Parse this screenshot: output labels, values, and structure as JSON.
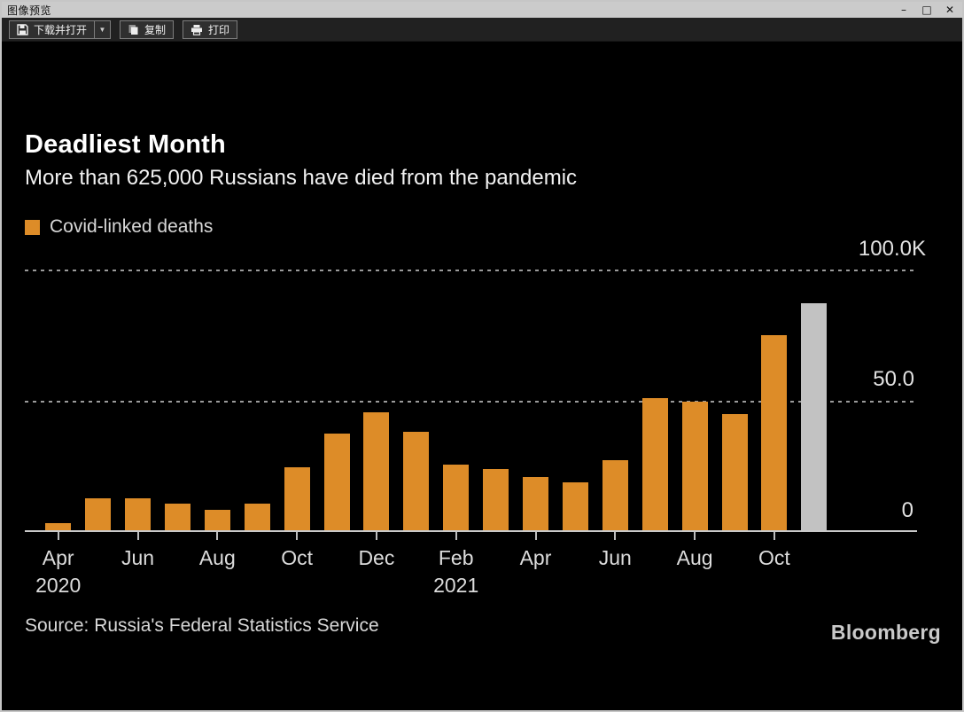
{
  "window": {
    "title": "图像预览",
    "controls": {
      "minimize": "–",
      "maximize": "□",
      "close": "✕"
    }
  },
  "toolbar": {
    "download_open_label": "下载并打开",
    "copy_label": "复制",
    "print_label": "打印"
  },
  "chart": {
    "title": "Deadliest Month",
    "subtitle": "More than 625,000 Russians have died from the pandemic",
    "legend_label": "Covid-linked deaths",
    "source": "Source: Russia's Federal Statistics Service",
    "brand": "Bloomberg",
    "colors": {
      "bar_orange": "#dd8c28",
      "bar_highlight_gray": "#c2c2c2",
      "background": "#000000",
      "text": "#f2f2f2"
    }
  },
  "chart_data": {
    "type": "bar",
    "title": "Deadliest Month",
    "subtitle": "More than 625,000 Russians have died from the pandemic",
    "legend": [
      "Covid-linked deaths"
    ],
    "unit": "deaths per month, thousands",
    "categories": [
      "Apr 2020",
      "May 2020",
      "Jun 2020",
      "Jul 2020",
      "Aug 2020",
      "Sep 2020",
      "Oct 2020",
      "Nov 2020",
      "Dec 2020",
      "Jan 2021",
      "Feb 2021",
      "Mar 2021",
      "Apr 2021",
      "May 2021",
      "Jun 2021",
      "Jul 2021",
      "Aug 2021",
      "Sep 2021",
      "Oct 2021",
      "Nov 2021"
    ],
    "values": [
      2.7,
      12.4,
      12.4,
      10.2,
      7.9,
      10.2,
      24.3,
      37.2,
      45.5,
      37.9,
      25.2,
      23.5,
      20.4,
      18.3,
      27.0,
      50.8,
      49.5,
      44.7,
      75.1,
      87.4
    ],
    "highlight_index": 19,
    "ylim": [
      0,
      100
    ],
    "ytick_labels": [
      "100.0K",
      "50.0",
      "0"
    ],
    "gridlines_at": [
      100,
      50
    ],
    "grid_style": "dotted",
    "legend_position": "top-left",
    "xtick_labels": [
      {
        "index": 0,
        "month": "Apr",
        "year": "2020"
      },
      {
        "index": 2,
        "month": "Jun",
        "year": ""
      },
      {
        "index": 4,
        "month": "Aug",
        "year": ""
      },
      {
        "index": 6,
        "month": "Oct",
        "year": ""
      },
      {
        "index": 8,
        "month": "Dec",
        "year": ""
      },
      {
        "index": 10,
        "month": "Feb",
        "year": "2021"
      },
      {
        "index": 12,
        "month": "Apr",
        "year": ""
      },
      {
        "index": 14,
        "month": "Jun",
        "year": ""
      },
      {
        "index": 16,
        "month": "Aug",
        "year": ""
      },
      {
        "index": 18,
        "month": "Oct",
        "year": ""
      }
    ],
    "source": "Source: Russia's Federal Statistics Service",
    "brand": "Bloomberg"
  }
}
